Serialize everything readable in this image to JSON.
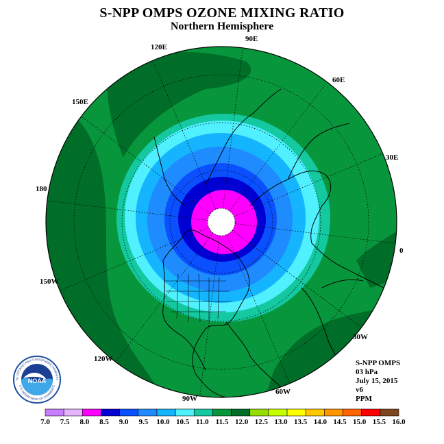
{
  "title": "S-NPP OMPS OZONE MIXING RATIO",
  "subtitle": "Northern Hemisphere",
  "longitude_labels": [
    "90E",
    "60E",
    "30E",
    "0",
    "30W",
    "60W",
    "90W",
    "120W",
    "150W",
    "180",
    "150E",
    "120E"
  ],
  "info": {
    "instrument": "S-NPP OMPS",
    "pressure": "03 hPa",
    "date": "July 15, 2015",
    "version": "v6",
    "units": "PPM"
  },
  "colorbar": {
    "labels": [
      "7.0",
      "7.5",
      "8.0",
      "8.5",
      "9.0",
      "9.5",
      "10.0",
      "10.5",
      "11.0",
      "11.5",
      "12.0",
      "12.5",
      "13.0",
      "13.5",
      "14.0",
      "14.5",
      "15.0",
      "15.5",
      "16.0"
    ],
    "colors": [
      "#c87dff",
      "#e6b4ff",
      "#ff00ff",
      "#0000d2",
      "#0a50ff",
      "#1e8cff",
      "#14b4ff",
      "#50f0ff",
      "#14c8a0",
      "#08963c",
      "#006e28",
      "#96dc00",
      "#c8ff00",
      "#ffff00",
      "#ffc800",
      "#ff9600",
      "#ff6400",
      "#ff0000",
      "#7d4620"
    ]
  },
  "map": {
    "outer_color": "#06823a",
    "dark_green": "#006e28"
  },
  "logo": {
    "text": "NOAA",
    "ring_text": "NATIONAL OCEANIC AND ATMOSPHERIC ADMINISTRATION",
    "ring_text_bottom": "U.S. DEPARTMENT OF COMMERCE"
  }
}
